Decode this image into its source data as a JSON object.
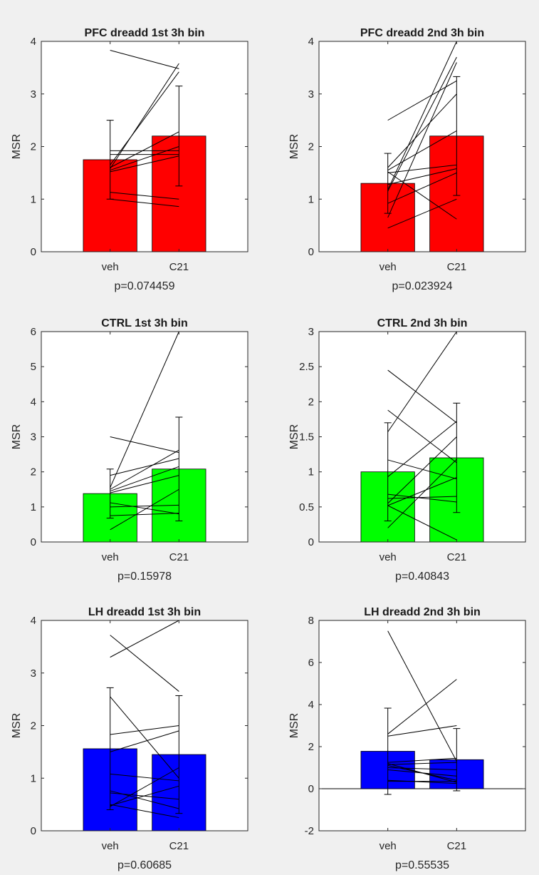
{
  "chart_data": [
    {
      "type": "bar",
      "title": "PFC dreadd 1st 3h bin",
      "ylabel": "MSR",
      "xlabel": "p=0.074459",
      "categories": [
        "veh",
        "C21"
      ],
      "values": [
        1.75,
        2.2
      ],
      "errors": [
        0.75,
        0.95
      ],
      "ylim": [
        0,
        4
      ],
      "yticks": [
        "0",
        "1",
        "2",
        "3",
        "4"
      ],
      "bar_color": "#ff0000",
      "pairs": [
        [
          3.83,
          3.48
        ],
        [
          1.58,
          3.58
        ],
        [
          1.65,
          3.42
        ],
        [
          1.6,
          2.28
        ],
        [
          1.92,
          1.92
        ],
        [
          1.85,
          1.85
        ],
        [
          1.55,
          2.0
        ],
        [
          1.52,
          1.82
        ],
        [
          1.13,
          1.0
        ],
        [
          1.0,
          0.86
        ]
      ]
    },
    {
      "type": "bar",
      "title": "PFC dreadd 2nd 3h bin",
      "ylabel": "MSR",
      "xlabel": "p=0.023924",
      "categories": [
        "veh",
        "C21"
      ],
      "values": [
        1.3,
        2.2
      ],
      "errors": [
        0.57,
        1.13
      ],
      "ylim": [
        0,
        4
      ],
      "yticks": [
        "0",
        "1",
        "2",
        "3",
        "4"
      ],
      "bar_color": "#ff0000",
      "pairs": [
        [
          2.5,
          3.25
        ],
        [
          1.6,
          3.0
        ],
        [
          1.55,
          2.3
        ],
        [
          1.5,
          1.65
        ],
        [
          1.52,
          0.62
        ],
        [
          1.18,
          4.0
        ],
        [
          1.15,
          3.7
        ],
        [
          0.65,
          3.6
        ],
        [
          1.28,
          1.58
        ],
        [
          0.92,
          1.5
        ],
        [
          0.45,
          1.0
        ]
      ]
    },
    {
      "type": "bar",
      "title": "CTRL 1st 3h bin",
      "ylabel": "MSR",
      "xlabel": "p=0.15978",
      "categories": [
        "veh",
        "C21"
      ],
      "values": [
        1.38,
        2.08
      ],
      "errors": [
        0.7,
        1.48
      ],
      "ylim": [
        0,
        6
      ],
      "yticks": [
        "0",
        "1",
        "2",
        "3",
        "4",
        "5",
        "6"
      ],
      "bar_color": "#00ff00",
      "pairs": [
        [
          1.55,
          6.0
        ],
        [
          3.0,
          2.55
        ],
        [
          1.9,
          2.38
        ],
        [
          1.5,
          2.62
        ],
        [
          1.45,
          2.15
        ],
        [
          1.4,
          1.9
        ],
        [
          1.12,
          0.8
        ],
        [
          1.0,
          1.05
        ],
        [
          0.75,
          0.82
        ],
        [
          0.35,
          1.5
        ]
      ]
    },
    {
      "type": "bar",
      "title": "CTRL 2nd 3h bin",
      "ylabel": "MSR",
      "xlabel": "p=0.40843",
      "categories": [
        "veh",
        "C21"
      ],
      "values": [
        1.0,
        1.2
      ],
      "errors": [
        0.7,
        0.78
      ],
      "ylim": [
        0,
        3
      ],
      "yticks": [
        "0",
        "0.5",
        "1",
        "1.5",
        "2",
        "2.5",
        "3"
      ],
      "bar_color": "#00ff00",
      "pairs": [
        [
          1.57,
          3.0
        ],
        [
          2.45,
          1.7
        ],
        [
          1.88,
          1.13
        ],
        [
          1.17,
          0.9
        ],
        [
          0.93,
          1.72
        ],
        [
          0.68,
          0.57
        ],
        [
          0.62,
          0.65
        ],
        [
          0.55,
          1.5
        ],
        [
          0.52,
          0.92
        ],
        [
          0.52,
          0.03
        ],
        [
          0.2,
          1.18
        ]
      ]
    },
    {
      "type": "bar",
      "title": "LH dreadd 1st 3h bin",
      "ylabel": "MSR",
      "xlabel": "p=0.60685",
      "categories": [
        "veh",
        "C21"
      ],
      "values": [
        1.56,
        1.45
      ],
      "errors": [
        1.16,
        1.12
      ],
      "ylim": [
        0,
        4
      ],
      "yticks": [
        "0",
        "1",
        "2",
        "3",
        "4"
      ],
      "bar_color": "#0000ff",
      "pairs": [
        [
          3.3,
          4.0
        ],
        [
          3.72,
          2.65
        ],
        [
          2.55,
          1.0
        ],
        [
          1.83,
          2.0
        ],
        [
          1.5,
          1.9
        ],
        [
          1.08,
          0.95
        ],
        [
          0.76,
          0.42
        ],
        [
          0.72,
          0.6
        ],
        [
          0.5,
          0.25
        ],
        [
          0.46,
          1.2
        ],
        [
          0.48,
          0.85
        ]
      ]
    },
    {
      "type": "bar",
      "title": "LH dreadd 2nd 3h bin",
      "ylabel": "MSR",
      "xlabel": "p=0.55535",
      "categories": [
        "veh",
        "C21"
      ],
      "values": [
        1.78,
        1.38
      ],
      "errors": [
        2.05,
        1.48
      ],
      "ylim": [
        -2,
        8
      ],
      "yticks": [
        "-2",
        "0",
        "2",
        "4",
        "6",
        "8"
      ],
      "bar_color": "#0000ff",
      "pairs": [
        [
          7.5,
          1.3
        ],
        [
          2.6,
          5.2
        ],
        [
          2.5,
          3.0
        ],
        [
          1.25,
          1.45
        ],
        [
          1.15,
          1.25
        ],
        [
          1.0,
          0.9
        ],
        [
          0.4,
          0.25
        ],
        [
          0.35,
          0.35
        ],
        [
          1.2,
          0.3
        ],
        [
          0.9,
          0.6
        ],
        [
          1.1,
          0.4
        ]
      ]
    }
  ]
}
